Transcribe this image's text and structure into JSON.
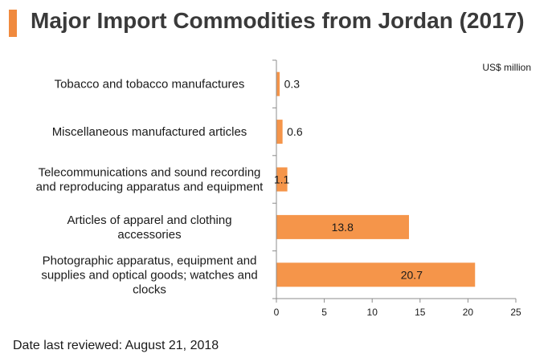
{
  "title": "Major Import Commodities from Jordan (2017)",
  "footer": "Date last reviewed: August 21, 2018",
  "colors": {
    "accent": "#f08a3e",
    "bar": "#f5954a",
    "axis": "#8c8c8c"
  },
  "chart_data": {
    "type": "bar",
    "orientation": "horizontal",
    "unit": "US$ million",
    "categories": [
      [
        "Tobacco and tobacco manufactures"
      ],
      [
        "Miscellaneous manufactured articles"
      ],
      [
        "Telecommunications and sound recording",
        "and reproducing apparatus and equipment"
      ],
      [
        "Articles of apparel and clothing",
        "accessories"
      ],
      [
        "Photographic apparatus, equipment and",
        "supplies and optical goods; watches and",
        "clocks"
      ]
    ],
    "values": [
      0.3,
      0.6,
      1.1,
      13.8,
      20.7
    ],
    "value_labels": [
      "0.3",
      "0.6",
      "1.1",
      "13.8",
      "20.7"
    ],
    "xlim": [
      0,
      25
    ],
    "xticks": [
      0,
      5,
      10,
      15,
      20,
      25
    ],
    "grid": false,
    "legend": "none"
  }
}
